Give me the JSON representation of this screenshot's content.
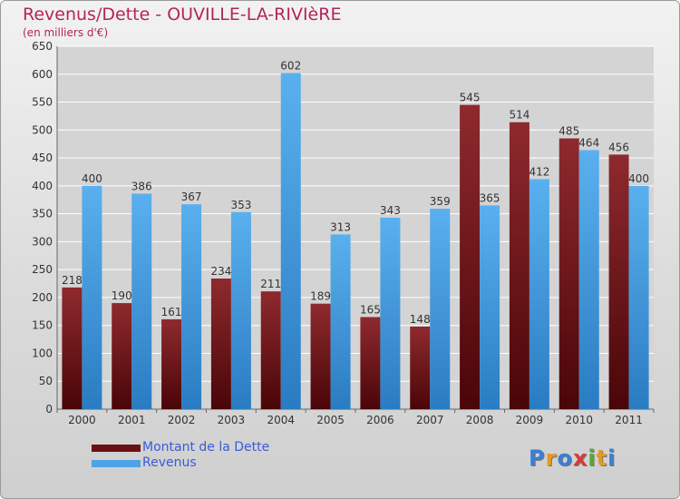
{
  "header": {
    "title": "Revenus/Dette - OUVILLE-LA-RIVIèRE",
    "subtitle": "(en milliers d'€)"
  },
  "chart_data": {
    "type": "bar",
    "categories": [
      "2000",
      "2001",
      "2002",
      "2003",
      "2004",
      "2005",
      "2006",
      "2007",
      "2008",
      "2009",
      "2010",
      "2011"
    ],
    "series": [
      {
        "name": "Montant de la Dette",
        "color": "#7a1e22",
        "values": [
          218,
          190,
          161,
          234,
          211,
          189,
          165,
          148,
          545,
          514,
          485,
          456
        ]
      },
      {
        "name": "Revenus",
        "color": "#4da3e6",
        "values": [
          400,
          386,
          367,
          353,
          602,
          313,
          343,
          359,
          365,
          412,
          464,
          400
        ]
      }
    ],
    "ylim": [
      0,
      650
    ],
    "yticks": [
      0,
      50,
      100,
      150,
      200,
      250,
      300,
      350,
      400,
      450,
      500,
      550,
      600,
      650
    ],
    "grid": true,
    "legend_position": "bottom-left"
  },
  "legend": {
    "items": [
      {
        "label": "Montant de la Dette",
        "color": "#6b0f12"
      },
      {
        "label": "Revenus",
        "color": "#4da3e6"
      }
    ]
  },
  "branding": {
    "logo_text": "Proxiti",
    "letter_colors": [
      "#3b7fd4",
      "#e39a20",
      "#3b7fd4",
      "#d63a3a",
      "#5aa63a",
      "#e39a20",
      "#3b7fd4"
    ]
  }
}
